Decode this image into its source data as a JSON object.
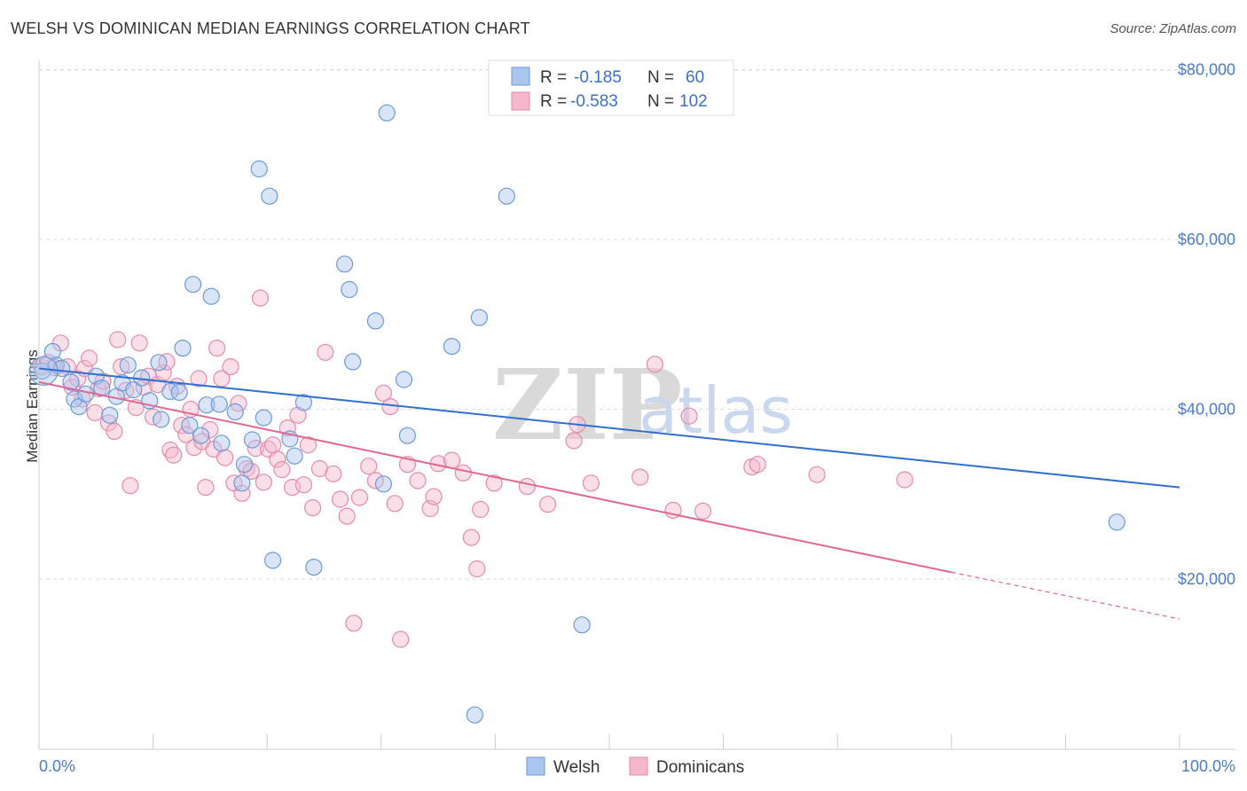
{
  "header": {
    "title": "WELSH VS DOMINICAN MEDIAN EARNINGS CORRELATION CHART",
    "source": "Source: ZipAtlas.com"
  },
  "legend": {
    "rows": [
      {
        "r_label": "R =",
        "r_value": "-0.185",
        "n_label": "N =",
        "n_value": "60"
      },
      {
        "r_label": "R =",
        "r_value": "-0.583",
        "n_label": "N =",
        "n_value": "102"
      }
    ]
  },
  "bottom_legend": {
    "welsh": "Welsh",
    "dominicans": "Dominicans"
  },
  "watermark": {
    "zip": "ZIP",
    "atlas": "atlas"
  },
  "colors": {
    "welsh_fill": "#aac6ee",
    "welsh_stroke": "#6b9ad8",
    "welsh_line": "#2f6fcd",
    "dom_fill": "#f5b7cb",
    "dom_stroke": "#e88aa8",
    "dom_line": "#e06892",
    "grid": "#dddddd",
    "tick_text": "#4a7cc9"
  },
  "chart_data": {
    "type": "scatter",
    "title": "WELSH VS DOMINICAN MEDIAN EARNINGS CORRELATION CHART",
    "xlabel": "",
    "ylabel": "Median Earnings",
    "x_tick_labels": [
      "0.0%",
      "100.0%"
    ],
    "y_tick_labels": [
      "$20,000",
      "$40,000",
      "$60,000",
      "$80,000"
    ],
    "y_ticks": [
      20000,
      40000,
      60000,
      80000
    ],
    "xlim": [
      0,
      100
    ],
    "ylim": [
      2000,
      82000
    ],
    "grid": true,
    "legend_position": "top-center",
    "series": [
      {
        "name": "Welsh",
        "r": -0.185,
        "n": 60,
        "trend": {
          "x0": 0,
          "y0": 44800,
          "x1": 100,
          "y1": 30800
        },
        "points": [
          [
            0.3,
            44500
          ],
          [
            1.2,
            46800
          ],
          [
            1.5,
            45200
          ],
          [
            2.0,
            44800
          ],
          [
            2.8,
            43200
          ],
          [
            3.1,
            41200
          ],
          [
            3.5,
            40300
          ],
          [
            4.1,
            41800
          ],
          [
            5.0,
            43900
          ],
          [
            5.5,
            42500
          ],
          [
            6.2,
            39300
          ],
          [
            6.8,
            41500
          ],
          [
            7.3,
            43100
          ],
          [
            7.8,
            45200
          ],
          [
            8.3,
            42300
          ],
          [
            9.0,
            43700
          ],
          [
            9.7,
            41000
          ],
          [
            10.5,
            45500
          ],
          [
            10.7,
            38800
          ],
          [
            11.5,
            42100
          ],
          [
            12.3,
            42000
          ],
          [
            12.6,
            47200
          ],
          [
            13.2,
            38100
          ],
          [
            13.5,
            54700
          ],
          [
            14.2,
            36900
          ],
          [
            14.7,
            40500
          ],
          [
            15.1,
            53300
          ],
          [
            15.8,
            40600
          ],
          [
            16.0,
            36000
          ],
          [
            17.2,
            39700
          ],
          [
            17.8,
            31300
          ],
          [
            18.0,
            33500
          ],
          [
            18.7,
            36400
          ],
          [
            19.3,
            68300
          ],
          [
            19.7,
            39000
          ],
          [
            20.2,
            65100
          ],
          [
            20.5,
            22200
          ],
          [
            22.0,
            36500
          ],
          [
            22.4,
            34500
          ],
          [
            23.2,
            40800
          ],
          [
            24.1,
            21400
          ],
          [
            26.8,
            57100
          ],
          [
            27.2,
            54100
          ],
          [
            27.5,
            45600
          ],
          [
            29.5,
            50400
          ],
          [
            30.2,
            31200
          ],
          [
            30.5,
            74900
          ],
          [
            32.0,
            43500
          ],
          [
            32.3,
            36900
          ],
          [
            36.2,
            47400
          ],
          [
            38.2,
            4000
          ],
          [
            38.6,
            50800
          ],
          [
            41.0,
            65100
          ],
          [
            47.6,
            14600
          ],
          [
            94.5,
            26700
          ]
        ]
      },
      {
        "name": "Dominicans",
        "r": -0.583,
        "n": 102,
        "trend": {
          "x0": 0,
          "y0": 43200,
          "x1": 80,
          "y1": 20800,
          "dash_to_x": 100,
          "dash_to_y": 15300
        },
        "points": [
          [
            0.2,
            45000
          ],
          [
            0.8,
            45500
          ],
          [
            1.4,
            44900
          ],
          [
            1.9,
            47800
          ],
          [
            2.5,
            45000
          ],
          [
            2.9,
            42600
          ],
          [
            3.4,
            43600
          ],
          [
            3.8,
            41200
          ],
          [
            4.0,
            44800
          ],
          [
            4.4,
            46000
          ],
          [
            4.9,
            39600
          ],
          [
            5.2,
            42400
          ],
          [
            5.6,
            43300
          ],
          [
            6.1,
            38400
          ],
          [
            6.6,
            37400
          ],
          [
            6.9,
            48200
          ],
          [
            7.2,
            45000
          ],
          [
            7.6,
            42200
          ],
          [
            8.0,
            31000
          ],
          [
            8.5,
            40200
          ],
          [
            8.8,
            47800
          ],
          [
            9.2,
            42600
          ],
          [
            9.6,
            43900
          ],
          [
            10.0,
            39100
          ],
          [
            10.4,
            42900
          ],
          [
            10.9,
            44300
          ],
          [
            11.2,
            45600
          ],
          [
            11.5,
            35200
          ],
          [
            11.8,
            34600
          ],
          [
            12.1,
            42700
          ],
          [
            12.5,
            38100
          ],
          [
            12.9,
            37000
          ],
          [
            13.3,
            40000
          ],
          [
            13.6,
            35500
          ],
          [
            14.0,
            43600
          ],
          [
            14.3,
            36200
          ],
          [
            14.6,
            30800
          ],
          [
            15.0,
            37600
          ],
          [
            15.3,
            35300
          ],
          [
            15.6,
            47200
          ],
          [
            16.0,
            43600
          ],
          [
            16.3,
            34300
          ],
          [
            16.8,
            45000
          ],
          [
            17.1,
            31300
          ],
          [
            17.5,
            40700
          ],
          [
            17.8,
            30100
          ],
          [
            18.2,
            33000
          ],
          [
            18.6,
            32700
          ],
          [
            19.0,
            35400
          ],
          [
            19.4,
            53100
          ],
          [
            19.7,
            31400
          ],
          [
            20.1,
            35300
          ],
          [
            20.5,
            35800
          ],
          [
            20.9,
            34100
          ],
          [
            21.3,
            32900
          ],
          [
            21.8,
            37800
          ],
          [
            22.2,
            30800
          ],
          [
            22.7,
            39300
          ],
          [
            23.2,
            31100
          ],
          [
            23.6,
            35800
          ],
          [
            24.0,
            28400
          ],
          [
            24.6,
            33000
          ],
          [
            25.1,
            46700
          ],
          [
            25.8,
            32400
          ],
          [
            26.4,
            29400
          ],
          [
            27.0,
            27400
          ],
          [
            27.6,
            14800
          ],
          [
            28.1,
            29600
          ],
          [
            28.9,
            33300
          ],
          [
            29.5,
            31600
          ],
          [
            30.2,
            41900
          ],
          [
            30.8,
            40300
          ],
          [
            31.2,
            28900
          ],
          [
            31.7,
            12900
          ],
          [
            32.3,
            33500
          ],
          [
            33.2,
            31600
          ],
          [
            34.3,
            28300
          ],
          [
            34.6,
            29700
          ],
          [
            35.0,
            33600
          ],
          [
            36.2,
            34000
          ],
          [
            37.2,
            32500
          ],
          [
            37.9,
            24900
          ],
          [
            38.4,
            21200
          ],
          [
            38.7,
            28200
          ],
          [
            39.9,
            31300
          ],
          [
            42.8,
            30900
          ],
          [
            44.6,
            28800
          ],
          [
            46.9,
            36300
          ],
          [
            47.2,
            38200
          ],
          [
            48.4,
            31300
          ],
          [
            52.7,
            32000
          ],
          [
            54.0,
            45300
          ],
          [
            55.6,
            28100
          ],
          [
            57.0,
            39200
          ],
          [
            58.2,
            28000
          ],
          [
            62.5,
            33200
          ],
          [
            63.0,
            33500
          ],
          [
            68.2,
            32300
          ],
          [
            75.9,
            31700
          ]
        ]
      }
    ]
  }
}
